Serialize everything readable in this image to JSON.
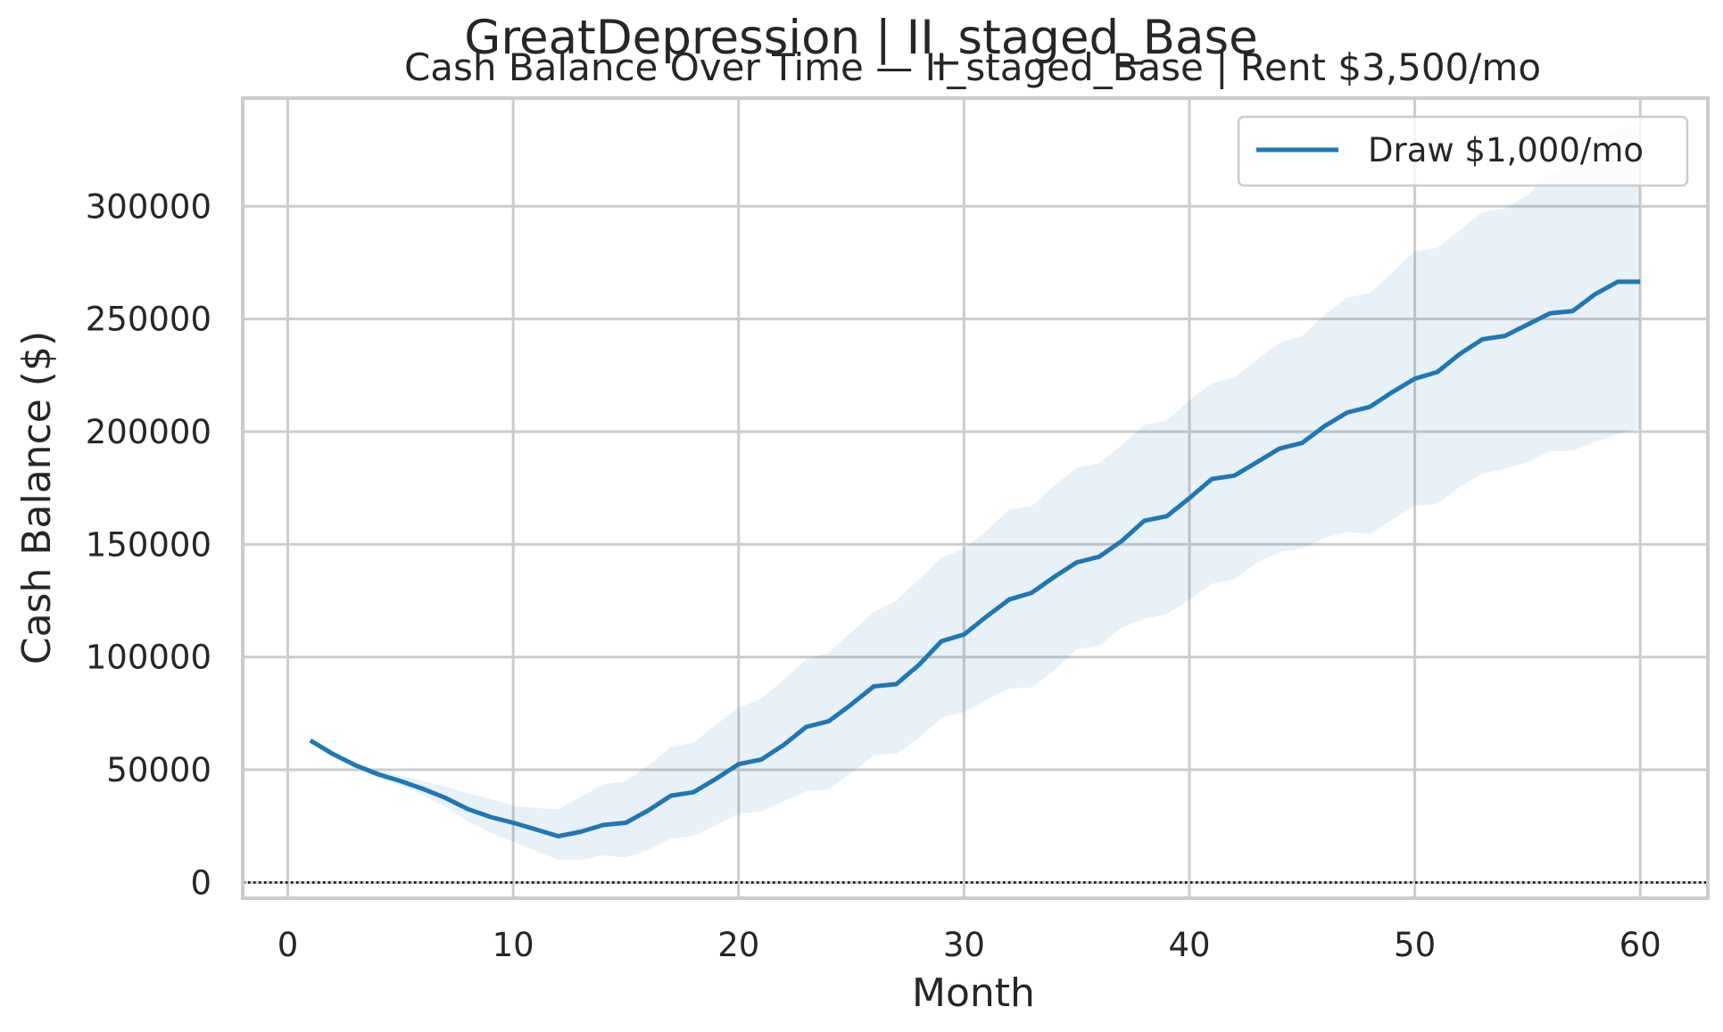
{
  "chart_data": {
    "type": "line",
    "suptitle": "GreatDepression | II_staged_Base",
    "title": "Cash Balance Over Time — II_staged_Base | Rent $3,500/mo",
    "xlabel": "Month",
    "ylabel": "Cash Balance ($)",
    "xlim": [
      -2,
      63
    ],
    "ylim": [
      -7000,
      348000
    ],
    "xticks": [
      0,
      10,
      20,
      30,
      40,
      50,
      60
    ],
    "yticks": [
      0,
      50000,
      100000,
      150000,
      200000,
      250000,
      300000
    ],
    "xtick_labels": [
      "0",
      "10",
      "20",
      "30",
      "40",
      "50",
      "60"
    ],
    "ytick_labels": [
      "0",
      "50000",
      "100000",
      "150000",
      "200000",
      "250000",
      "300000"
    ],
    "grid": true,
    "legend_position": "top-right",
    "reference_line": {
      "y": 0,
      "style": "dotted",
      "color": "#000000"
    },
    "series": [
      {
        "name": "Draw $1,000/mo",
        "color": "#1f77b4",
        "x": [
          1,
          2,
          3,
          4,
          5,
          6,
          7,
          8,
          9,
          10,
          11,
          12,
          13,
          14,
          15,
          16,
          17,
          18,
          19,
          20,
          21,
          22,
          23,
          24,
          25,
          26,
          27,
          28,
          29,
          30,
          31,
          32,
          33,
          34,
          35,
          36,
          37,
          38,
          39,
          40,
          41,
          42,
          43,
          44,
          45,
          46,
          47,
          48,
          49,
          50,
          51,
          52,
          53,
          54,
          55,
          56,
          57,
          58,
          59,
          60
        ],
        "values": [
          63000,
          57000,
          52000,
          48000,
          45000,
          41500,
          37500,
          32500,
          29000,
          26500,
          23500,
          20500,
          22500,
          25500,
          26500,
          32000,
          38500,
          40000,
          46000,
          52500,
          54500,
          61000,
          69000,
          71500,
          79000,
          87000,
          88000,
          96500,
          107000,
          110000,
          118000,
          125500,
          128500,
          135500,
          142000,
          144500,
          151500,
          160500,
          162500,
          170500,
          179000,
          180500,
          186500,
          192500,
          195000,
          202500,
          208500,
          211000,
          217500,
          223500,
          226500,
          234500,
          241000,
          242500,
          247500,
          252500,
          253500,
          261000,
          266500,
          266500
        ],
        "band_upper": [
          63000,
          57500,
          53000,
          49500,
          47500,
          45000,
          42500,
          39500,
          37000,
          34000,
          33000,
          32500,
          38000,
          43500,
          45000,
          52000,
          60000,
          62000,
          70000,
          77500,
          81500,
          90000,
          99000,
          102000,
          111000,
          120000,
          125000,
          134500,
          144000,
          148000,
          156000,
          165500,
          167000,
          176000,
          184000,
          186000,
          194000,
          203000,
          205000,
          214000,
          221500,
          224000,
          232000,
          239500,
          242500,
          252000,
          259500,
          261500,
          270500,
          280000,
          281500,
          289500,
          297500,
          299000,
          305000,
          315000,
          318000,
          328000,
          334000,
          336000
        ],
        "band_lower": [
          63000,
          56000,
          51000,
          46500,
          43000,
          38500,
          33500,
          27000,
          22000,
          18000,
          14000,
          10000,
          10000,
          12000,
          11000,
          14500,
          19500,
          20500,
          25500,
          30500,
          31500,
          36000,
          40500,
          41500,
          48500,
          56500,
          57000,
          64000,
          73000,
          75500,
          81000,
          86000,
          86500,
          94000,
          103500,
          105000,
          113000,
          117000,
          119000,
          125500,
          132500,
          134500,
          142000,
          146500,
          148000,
          153000,
          155500,
          154500,
          161000,
          167000,
          168000,
          175500,
          181500,
          183500,
          186500,
          191500,
          191500,
          195500,
          199000,
          201500
        ]
      }
    ]
  }
}
